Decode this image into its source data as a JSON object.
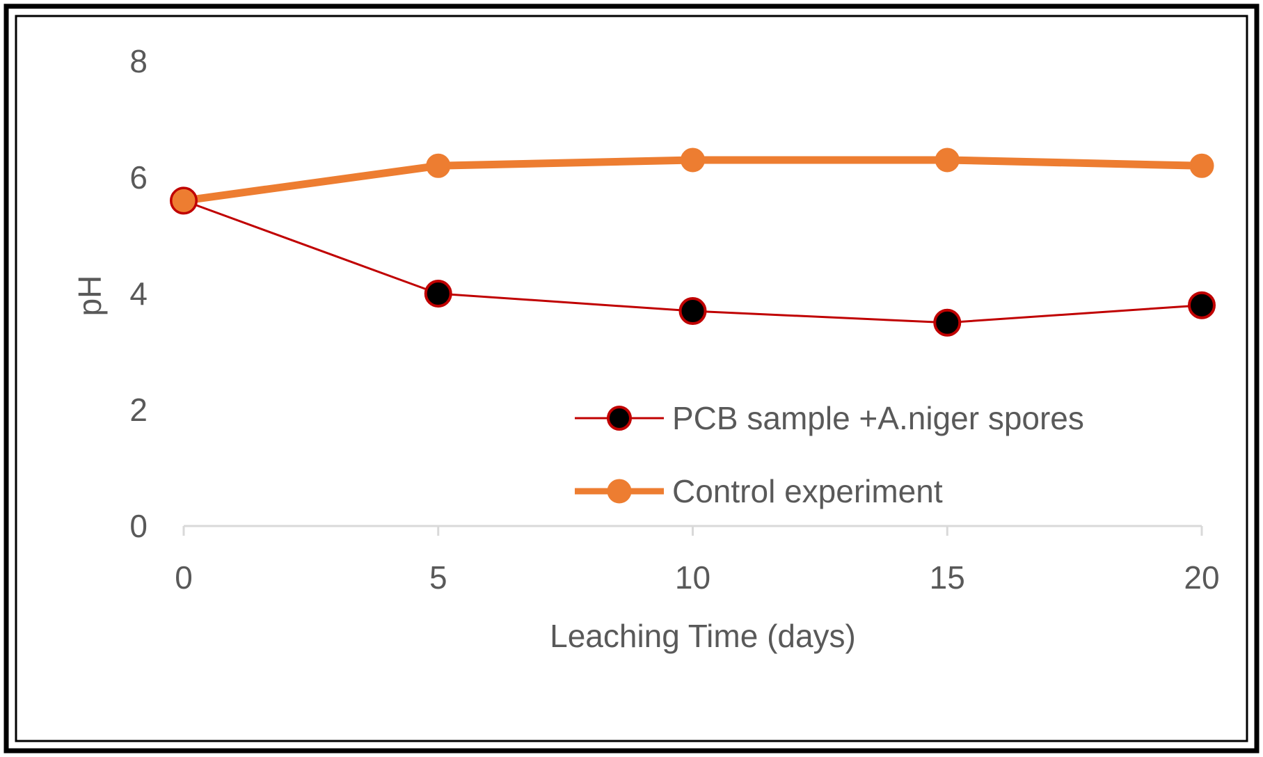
{
  "chart_data": {
    "type": "line",
    "title": "",
    "xlabel": "Leaching Time (days)",
    "ylabel": "pH",
    "x": [
      0,
      5,
      10,
      15,
      20
    ],
    "xlim": [
      0,
      20
    ],
    "ylim": [
      0,
      8
    ],
    "x_ticks": [
      "0",
      "5",
      "10",
      "15",
      "20"
    ],
    "y_ticks": [
      "0",
      "2",
      "4",
      "6",
      "8"
    ],
    "grid": false,
    "legend_position": "bottom-right",
    "series": [
      {
        "name": "PCB sample +A.niger spores",
        "values": [
          5.6,
          4.0,
          3.7,
          3.5,
          3.8
        ],
        "line_color": "#c00000",
        "marker_color": "#000000",
        "marker_edge_color": "#c00000"
      },
      {
        "name": "Control experiment",
        "values": [
          5.6,
          6.2,
          6.3,
          6.3,
          6.2
        ],
        "line_color": "#ed7d31",
        "marker_color": "#ed7d31",
        "marker_edge_color": "#ed7d31"
      }
    ]
  }
}
